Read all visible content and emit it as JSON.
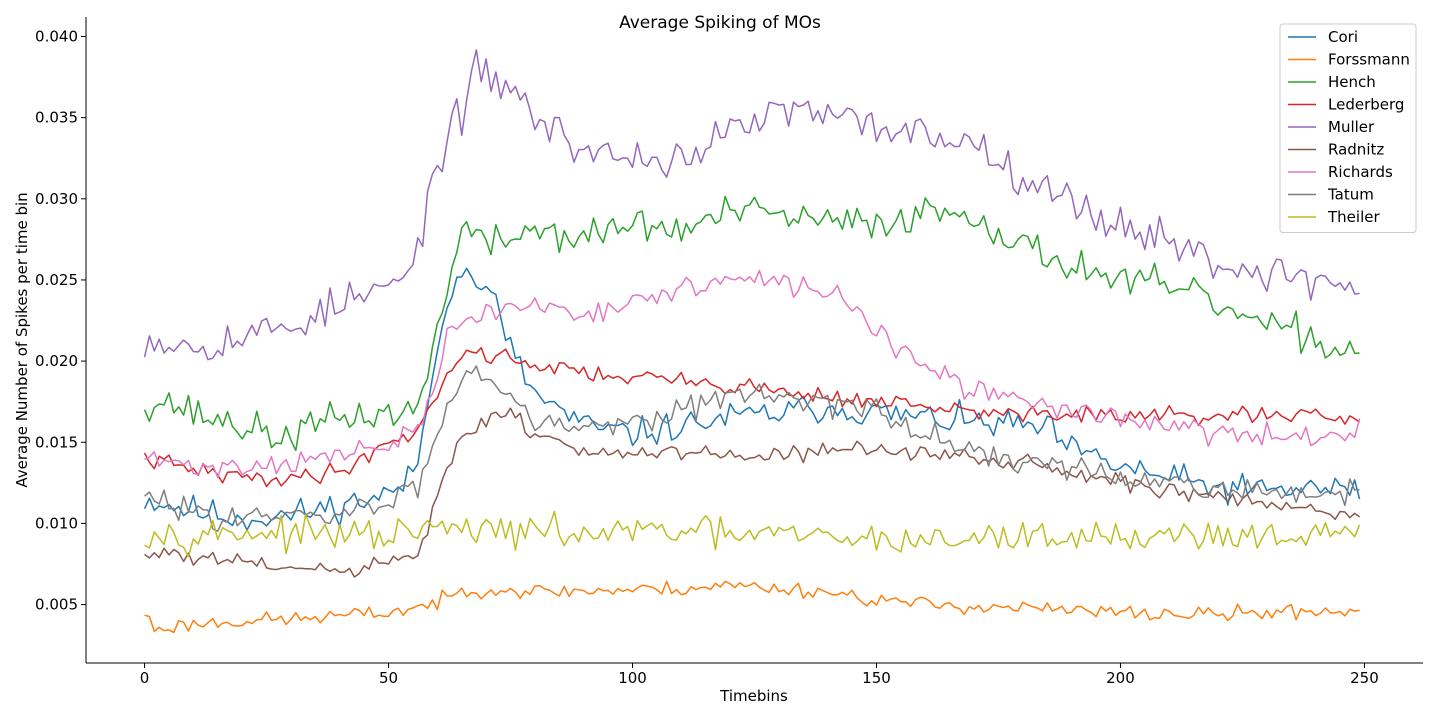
{
  "chart_data": {
    "type": "line",
    "title": "Average Spiking of MOs",
    "xlabel": "Timebins",
    "ylabel": "Average Number of Spikes per time bin",
    "xlim": [
      -12,
      262
    ],
    "ylim": [
      0.0014,
      0.0412
    ],
    "xticks": [
      0,
      50,
      100,
      150,
      200,
      250
    ],
    "yticks": [
      0.005,
      0.01,
      0.015,
      0.02,
      0.025,
      0.03,
      0.035,
      0.04
    ],
    "ytick_labels": [
      "0.005",
      "0.010",
      "0.015",
      "0.020",
      "0.025",
      "0.030",
      "0.035",
      "0.040"
    ],
    "grid": false,
    "legend_position": "top-right",
    "n_points": 250,
    "series": [
      {
        "name": "Cori",
        "color": "#1f77b4",
        "noise": 0.0007,
        "seed": 11,
        "anchors": [
          [
            0,
            0.0115
          ],
          [
            10,
            0.0108
          ],
          [
            20,
            0.0103
          ],
          [
            30,
            0.0105
          ],
          [
            40,
            0.0111
          ],
          [
            50,
            0.0118
          ],
          [
            55,
            0.0128
          ],
          [
            58,
            0.017
          ],
          [
            60,
            0.021
          ],
          [
            62,
            0.024
          ],
          [
            64,
            0.0255
          ],
          [
            68,
            0.025
          ],
          [
            72,
            0.0235
          ],
          [
            76,
            0.02
          ],
          [
            80,
            0.018
          ],
          [
            90,
            0.016
          ],
          [
            100,
            0.0155
          ],
          [
            110,
            0.016
          ],
          [
            120,
            0.0165
          ],
          [
            130,
            0.0168
          ],
          [
            140,
            0.0172
          ],
          [
            150,
            0.0168
          ],
          [
            160,
            0.0165
          ],
          [
            170,
            0.0162
          ],
          [
            180,
            0.016
          ],
          [
            185,
            0.0158
          ],
          [
            190,
            0.0145
          ],
          [
            200,
            0.0135
          ],
          [
            210,
            0.0128
          ],
          [
            220,
            0.0122
          ],
          [
            230,
            0.012
          ],
          [
            240,
            0.0122
          ],
          [
            249,
            0.012
          ]
        ]
      },
      {
        "name": "Forssmann",
        "color": "#ff7f0e",
        "noise": 0.00035,
        "seed": 23,
        "anchors": [
          [
            0,
            0.0045
          ],
          [
            2,
            0.0035
          ],
          [
            10,
            0.0038
          ],
          [
            20,
            0.004
          ],
          [
            30,
            0.0041
          ],
          [
            40,
            0.0043
          ],
          [
            50,
            0.0045
          ],
          [
            60,
            0.0051
          ],
          [
            65,
            0.0058
          ],
          [
            70,
            0.006
          ],
          [
            80,
            0.0058
          ],
          [
            100,
            0.0059
          ],
          [
            110,
            0.006
          ],
          [
            120,
            0.0062
          ],
          [
            130,
            0.006
          ],
          [
            140,
            0.0058
          ],
          [
            150,
            0.0053
          ],
          [
            160,
            0.005
          ],
          [
            170,
            0.0049
          ],
          [
            180,
            0.0048
          ],
          [
            190,
            0.0046
          ],
          [
            200,
            0.0045
          ],
          [
            210,
            0.0044
          ],
          [
            220,
            0.0044
          ],
          [
            230,
            0.0045
          ],
          [
            240,
            0.0046
          ],
          [
            249,
            0.0046
          ]
        ]
      },
      {
        "name": "Hench",
        "color": "#2ca02c",
        "noise": 0.0008,
        "seed": 37,
        "anchors": [
          [
            0,
            0.0175
          ],
          [
            5,
            0.0175
          ],
          [
            10,
            0.0168
          ],
          [
            20,
            0.016
          ],
          [
            28,
            0.0152
          ],
          [
            30,
            0.0155
          ],
          [
            40,
            0.0165
          ],
          [
            50,
            0.0168
          ],
          [
            55,
            0.0168
          ],
          [
            58,
            0.019
          ],
          [
            60,
            0.022
          ],
          [
            62,
            0.025
          ],
          [
            66,
            0.0285
          ],
          [
            70,
            0.027
          ],
          [
            80,
            0.0282
          ],
          [
            90,
            0.0275
          ],
          [
            100,
            0.0285
          ],
          [
            110,
            0.028
          ],
          [
            120,
            0.0292
          ],
          [
            130,
            0.029
          ],
          [
            140,
            0.0285
          ],
          [
            150,
            0.0285
          ],
          [
            160,
            0.0292
          ],
          [
            170,
            0.0292
          ],
          [
            175,
            0.028
          ],
          [
            180,
            0.027
          ],
          [
            190,
            0.026
          ],
          [
            200,
            0.025
          ],
          [
            210,
            0.0245
          ],
          [
            220,
            0.0235
          ],
          [
            230,
            0.022
          ],
          [
            240,
            0.0215
          ],
          [
            245,
            0.0205
          ],
          [
            249,
            0.021
          ]
        ]
      },
      {
        "name": "Lederberg",
        "color": "#d62728",
        "noise": 0.0004,
        "seed": 41,
        "anchors": [
          [
            0,
            0.014
          ],
          [
            10,
            0.0133
          ],
          [
            20,
            0.0128
          ],
          [
            30,
            0.0128
          ],
          [
            40,
            0.0132
          ],
          [
            50,
            0.015
          ],
          [
            55,
            0.0155
          ],
          [
            60,
            0.018
          ],
          [
            65,
            0.0205
          ],
          [
            70,
            0.0205
          ],
          [
            80,
            0.0198
          ],
          [
            90,
            0.0193
          ],
          [
            100,
            0.019
          ],
          [
            110,
            0.0188
          ],
          [
            120,
            0.0185
          ],
          [
            130,
            0.0182
          ],
          [
            140,
            0.0178
          ],
          [
            150,
            0.0175
          ],
          [
            160,
            0.0172
          ],
          [
            170,
            0.0168
          ],
          [
            180,
            0.0168
          ],
          [
            190,
            0.0167
          ],
          [
            200,
            0.0166
          ],
          [
            210,
            0.0166
          ],
          [
            220,
            0.0166
          ],
          [
            230,
            0.0166
          ],
          [
            240,
            0.0166
          ],
          [
            249,
            0.0162
          ]
        ]
      },
      {
        "name": "Muller",
        "color": "#9467bd",
        "noise": 0.0009,
        "seed": 53,
        "anchors": [
          [
            0,
            0.0215
          ],
          [
            10,
            0.021
          ],
          [
            20,
            0.0215
          ],
          [
            30,
            0.0222
          ],
          [
            40,
            0.0235
          ],
          [
            50,
            0.0245
          ],
          [
            55,
            0.0255
          ],
          [
            58,
            0.03
          ],
          [
            62,
            0.034
          ],
          [
            65,
            0.035
          ],
          [
            68,
            0.038
          ],
          [
            70,
            0.0375
          ],
          [
            75,
            0.037
          ],
          [
            80,
            0.035
          ],
          [
            90,
            0.033
          ],
          [
            100,
            0.0325
          ],
          [
            110,
            0.0325
          ],
          [
            120,
            0.034
          ],
          [
            130,
            0.0355
          ],
          [
            140,
            0.035
          ],
          [
            150,
            0.0345
          ],
          [
            160,
            0.034
          ],
          [
            170,
            0.0335
          ],
          [
            180,
            0.0315
          ],
          [
            185,
            0.031
          ],
          [
            190,
            0.0295
          ],
          [
            200,
            0.0285
          ],
          [
            210,
            0.0275
          ],
          [
            220,
            0.026
          ],
          [
            230,
            0.0255
          ],
          [
            240,
            0.025
          ],
          [
            249,
            0.0245
          ]
        ]
      },
      {
        "name": "Radnitz",
        "color": "#8c564b",
        "noise": 0.0004,
        "seed": 61,
        "anchors": [
          [
            0,
            0.008
          ],
          [
            5,
            0.0082
          ],
          [
            10,
            0.0078
          ],
          [
            20,
            0.0076
          ],
          [
            30,
            0.0072
          ],
          [
            40,
            0.007
          ],
          [
            50,
            0.0075
          ],
          [
            55,
            0.0078
          ],
          [
            58,
            0.0095
          ],
          [
            60,
            0.012
          ],
          [
            64,
            0.0145
          ],
          [
            68,
            0.016
          ],
          [
            72,
            0.0168
          ],
          [
            76,
            0.0165
          ],
          [
            80,
            0.0155
          ],
          [
            90,
            0.0145
          ],
          [
            100,
            0.0143
          ],
          [
            110,
            0.0142
          ],
          [
            120,
            0.0142
          ],
          [
            130,
            0.0143
          ],
          [
            140,
            0.0145
          ],
          [
            150,
            0.0145
          ],
          [
            160,
            0.0143
          ],
          [
            170,
            0.014
          ],
          [
            180,
            0.0138
          ],
          [
            190,
            0.0132
          ],
          [
            200,
            0.0126
          ],
          [
            210,
            0.012
          ],
          [
            220,
            0.0116
          ],
          [
            230,
            0.0112
          ],
          [
            240,
            0.0108
          ],
          [
            249,
            0.0105
          ]
        ]
      },
      {
        "name": "Richards",
        "color": "#e377c2",
        "noise": 0.0005,
        "seed": 71,
        "anchors": [
          [
            0,
            0.014
          ],
          [
            10,
            0.0135
          ],
          [
            20,
            0.0135
          ],
          [
            30,
            0.0138
          ],
          [
            40,
            0.0142
          ],
          [
            50,
            0.0148
          ],
          [
            55,
            0.0155
          ],
          [
            58,
            0.017
          ],
          [
            62,
            0.0215
          ],
          [
            66,
            0.0225
          ],
          [
            70,
            0.023
          ],
          [
            80,
            0.0235
          ],
          [
            90,
            0.023
          ],
          [
            100,
            0.0235
          ],
          [
            110,
            0.0245
          ],
          [
            120,
            0.025
          ],
          [
            130,
            0.0248
          ],
          [
            140,
            0.0243
          ],
          [
            145,
            0.0235
          ],
          [
            150,
            0.022
          ],
          [
            155,
            0.0205
          ],
          [
            160,
            0.0195
          ],
          [
            170,
            0.0182
          ],
          [
            180,
            0.0176
          ],
          [
            190,
            0.017
          ],
          [
            200,
            0.0165
          ],
          [
            210,
            0.016
          ],
          [
            220,
            0.0155
          ],
          [
            230,
            0.0153
          ],
          [
            240,
            0.0153
          ],
          [
            249,
            0.016
          ]
        ]
      },
      {
        "name": "Tatum",
        "color": "#7f7f7f",
        "noise": 0.0006,
        "seed": 83,
        "anchors": [
          [
            0,
            0.0115
          ],
          [
            10,
            0.0108
          ],
          [
            20,
            0.0104
          ],
          [
            30,
            0.0103
          ],
          [
            40,
            0.0105
          ],
          [
            50,
            0.0113
          ],
          [
            55,
            0.012
          ],
          [
            58,
            0.0135
          ],
          [
            62,
            0.0175
          ],
          [
            66,
            0.0195
          ],
          [
            70,
            0.0192
          ],
          [
            75,
            0.018
          ],
          [
            80,
            0.0165
          ],
          [
            90,
            0.016
          ],
          [
            100,
            0.0163
          ],
          [
            110,
            0.0172
          ],
          [
            120,
            0.0178
          ],
          [
            130,
            0.018
          ],
          [
            140,
            0.0175
          ],
          [
            150,
            0.0168
          ],
          [
            160,
            0.0155
          ],
          [
            170,
            0.0145
          ],
          [
            180,
            0.0138
          ],
          [
            190,
            0.0132
          ],
          [
            200,
            0.0128
          ],
          [
            210,
            0.0125
          ],
          [
            220,
            0.0122
          ],
          [
            230,
            0.012
          ],
          [
            240,
            0.0118
          ],
          [
            249,
            0.0118
          ]
        ]
      },
      {
        "name": "Theiler",
        "color": "#bcbd22",
        "noise": 0.0007,
        "seed": 97,
        "anchors": [
          [
            0,
            0.0095
          ],
          [
            10,
            0.0093
          ],
          [
            20,
            0.0095
          ],
          [
            30,
            0.0093
          ],
          [
            40,
            0.0093
          ],
          [
            50,
            0.0092
          ],
          [
            60,
            0.0097
          ],
          [
            70,
            0.0095
          ],
          [
            80,
            0.0095
          ],
          [
            90,
            0.0093
          ],
          [
            100,
            0.0095
          ],
          [
            110,
            0.0095
          ],
          [
            120,
            0.0093
          ],
          [
            130,
            0.0093
          ],
          [
            140,
            0.0091
          ],
          [
            150,
            0.009
          ],
          [
            160,
            0.009
          ],
          [
            170,
            0.009
          ],
          [
            180,
            0.0092
          ],
          [
            190,
            0.0092
          ],
          [
            200,
            0.0092
          ],
          [
            210,
            0.0093
          ],
          [
            220,
            0.0093
          ],
          [
            230,
            0.0093
          ],
          [
            240,
            0.0092
          ],
          [
            249,
            0.0092
          ]
        ]
      }
    ]
  }
}
